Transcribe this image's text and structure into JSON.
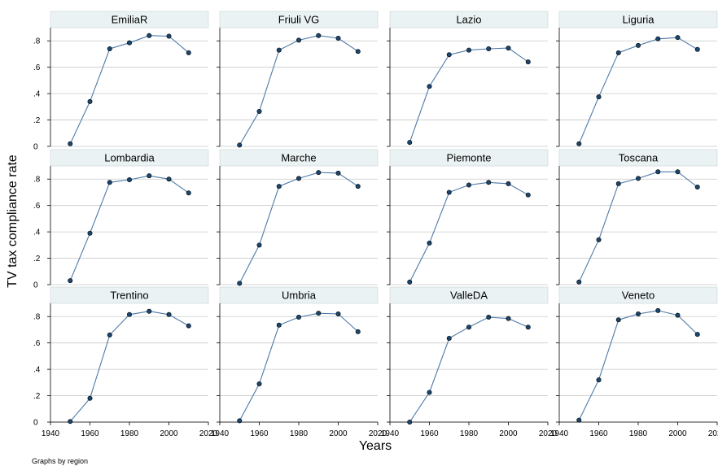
{
  "figure": {
    "ylabel": "TV tax compliance rate",
    "xlabel": "Years",
    "note": "Graphs by region"
  },
  "chart_data": {
    "type": "line",
    "layout": "small-multiples 3x4",
    "x": [
      1950,
      1960,
      1970,
      1980,
      1990,
      2000,
      2010
    ],
    "xlim": [
      1940,
      2020
    ],
    "ylim": [
      0,
      0.9
    ],
    "xticks": [
      1940,
      1960,
      1980,
      2000,
      2020
    ],
    "xtick_labels": [
      "1940",
      "1960",
      "1980",
      "2000",
      "2020"
    ],
    "yticks": [
      0,
      0.2,
      0.4,
      0.6,
      0.8
    ],
    "ytick_labels": [
      "0",
      ".2",
      ".4",
      ".6",
      ".8"
    ],
    "grid": true,
    "line_color": "#4e79a7",
    "marker_color": "#1a476f",
    "strip_color": "#eaf2f3",
    "panels": [
      {
        "name": "EmiliaR",
        "values": [
          0.02,
          0.34,
          0.74,
          0.785,
          0.84,
          0.835,
          0.71
        ]
      },
      {
        "name": "Friuli VG",
        "values": [
          0.01,
          0.265,
          0.73,
          0.805,
          0.84,
          0.82,
          0.72
        ]
      },
      {
        "name": "Lazio",
        "values": [
          0.03,
          0.455,
          0.695,
          0.73,
          0.74,
          0.745,
          0.64
        ]
      },
      {
        "name": "Liguria",
        "values": [
          0.02,
          0.375,
          0.71,
          0.765,
          0.815,
          0.825,
          0.735
        ]
      },
      {
        "name": "Lombardia",
        "values": [
          0.03,
          0.39,
          0.775,
          0.795,
          0.825,
          0.8,
          0.695
        ]
      },
      {
        "name": "Marche",
        "values": [
          0.01,
          0.3,
          0.745,
          0.805,
          0.85,
          0.845,
          0.745
        ]
      },
      {
        "name": "Piemonte",
        "values": [
          0.02,
          0.315,
          0.7,
          0.755,
          0.775,
          0.765,
          0.68
        ]
      },
      {
        "name": "Toscana",
        "values": [
          0.02,
          0.34,
          0.765,
          0.805,
          0.855,
          0.855,
          0.74
        ]
      },
      {
        "name": "Trentino",
        "values": [
          0.005,
          0.18,
          0.66,
          0.815,
          0.84,
          0.815,
          0.73
        ]
      },
      {
        "name": "Umbria",
        "values": [
          0.01,
          0.29,
          0.735,
          0.795,
          0.825,
          0.82,
          0.685
        ]
      },
      {
        "name": "ValleDA",
        "values": [
          0.0,
          0.225,
          0.635,
          0.72,
          0.795,
          0.785,
          0.72
        ]
      },
      {
        "name": "Veneto",
        "values": [
          0.015,
          0.32,
          0.775,
          0.82,
          0.845,
          0.81,
          0.665
        ]
      }
    ]
  }
}
